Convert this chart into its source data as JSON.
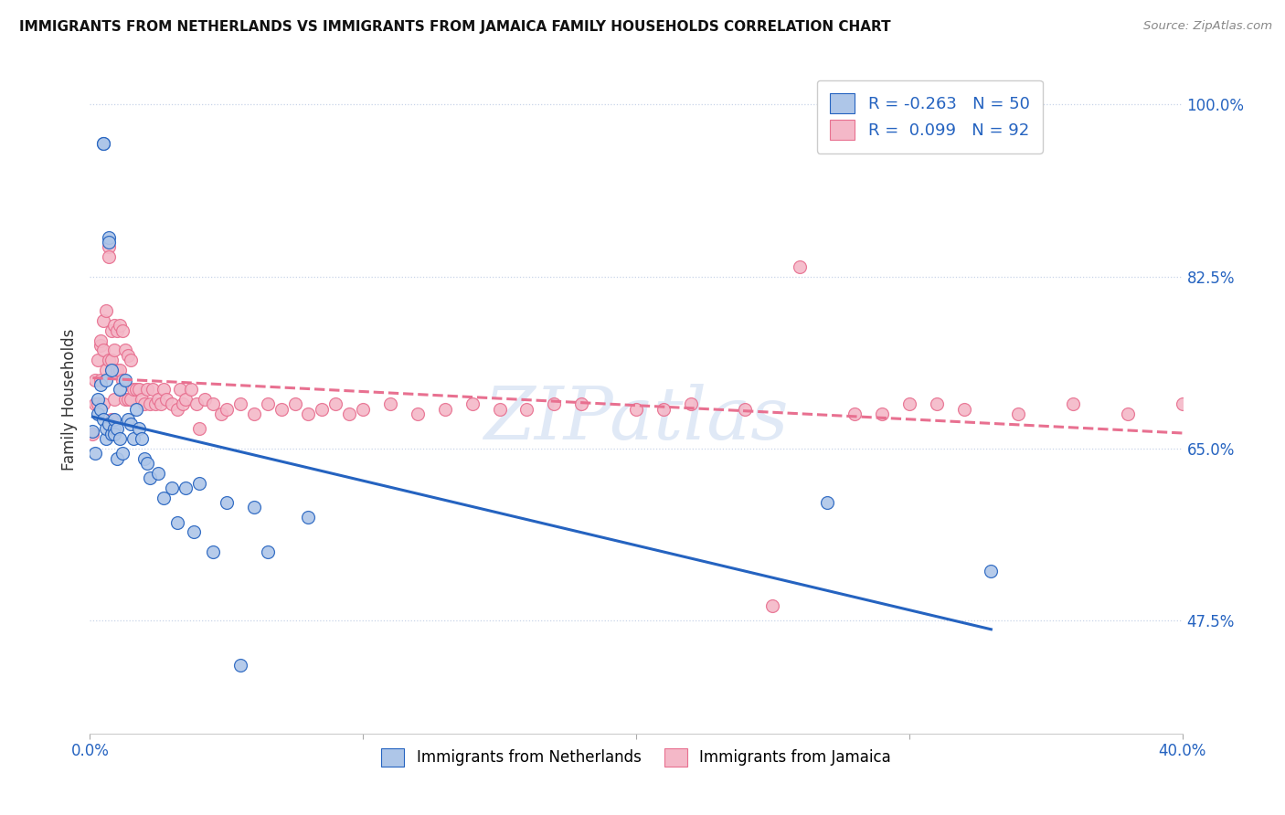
{
  "title": "IMMIGRANTS FROM NETHERLANDS VS IMMIGRANTS FROM JAMAICA FAMILY HOUSEHOLDS CORRELATION CHART",
  "source": "Source: ZipAtlas.com",
  "ylabel": "Family Households",
  "ytick_labels": [
    "100.0%",
    "82.5%",
    "65.0%",
    "47.5%"
  ],
  "ytick_values": [
    1.0,
    0.825,
    0.65,
    0.475
  ],
  "xlim": [
    0.0,
    0.4
  ],
  "ylim": [
    0.36,
    1.04
  ],
  "netherlands_R": -0.263,
  "netherlands_N": 50,
  "jamaica_R": 0.099,
  "jamaica_N": 92,
  "netherlands_color": "#aec6e8",
  "jamaica_color": "#f4b8c8",
  "netherlands_line_color": "#2563c0",
  "jamaica_line_color": "#e87090",
  "background_color": "#ffffff",
  "grid_color": "#c8d4e8",
  "watermark": "ZIPatlas",
  "netherlands_x": [
    0.001,
    0.002,
    0.003,
    0.003,
    0.004,
    0.004,
    0.005,
    0.005,
    0.005,
    0.006,
    0.006,
    0.006,
    0.007,
    0.007,
    0.007,
    0.008,
    0.008,
    0.009,
    0.009,
    0.009,
    0.01,
    0.01,
    0.011,
    0.011,
    0.012,
    0.013,
    0.014,
    0.015,
    0.016,
    0.017,
    0.018,
    0.019,
    0.02,
    0.021,
    0.022,
    0.025,
    0.027,
    0.03,
    0.032,
    0.035,
    0.038,
    0.04,
    0.045,
    0.05,
    0.055,
    0.06,
    0.065,
    0.08,
    0.27,
    0.33
  ],
  "netherlands_y": [
    0.668,
    0.645,
    0.685,
    0.7,
    0.69,
    0.715,
    0.96,
    0.96,
    0.68,
    0.66,
    0.72,
    0.67,
    0.865,
    0.86,
    0.675,
    0.665,
    0.73,
    0.67,
    0.665,
    0.68,
    0.67,
    0.64,
    0.71,
    0.66,
    0.645,
    0.72,
    0.68,
    0.675,
    0.66,
    0.69,
    0.67,
    0.66,
    0.64,
    0.635,
    0.62,
    0.625,
    0.6,
    0.61,
    0.575,
    0.61,
    0.565,
    0.615,
    0.545,
    0.595,
    0.43,
    0.59,
    0.545,
    0.58,
    0.595,
    0.525
  ],
  "jamaica_x": [
    0.001,
    0.002,
    0.002,
    0.003,
    0.003,
    0.004,
    0.004,
    0.004,
    0.005,
    0.005,
    0.005,
    0.006,
    0.006,
    0.007,
    0.007,
    0.007,
    0.008,
    0.008,
    0.008,
    0.009,
    0.009,
    0.009,
    0.01,
    0.01,
    0.011,
    0.011,
    0.012,
    0.012,
    0.013,
    0.013,
    0.014,
    0.014,
    0.015,
    0.015,
    0.016,
    0.017,
    0.018,
    0.019,
    0.02,
    0.021,
    0.022,
    0.023,
    0.024,
    0.025,
    0.026,
    0.027,
    0.028,
    0.03,
    0.032,
    0.033,
    0.034,
    0.035,
    0.037,
    0.039,
    0.04,
    0.042,
    0.045,
    0.048,
    0.05,
    0.055,
    0.06,
    0.065,
    0.07,
    0.075,
    0.08,
    0.085,
    0.09,
    0.095,
    0.1,
    0.11,
    0.12,
    0.13,
    0.14,
    0.15,
    0.16,
    0.18,
    0.2,
    0.22,
    0.24,
    0.26,
    0.28,
    0.3,
    0.32,
    0.34,
    0.36,
    0.38,
    0.4,
    0.17,
    0.21,
    0.29,
    0.31,
    0.25
  ],
  "jamaica_y": [
    0.665,
    0.695,
    0.72,
    0.74,
    0.695,
    0.755,
    0.76,
    0.72,
    0.78,
    0.75,
    0.695,
    0.79,
    0.73,
    0.855,
    0.845,
    0.74,
    0.77,
    0.74,
    0.68,
    0.775,
    0.75,
    0.7,
    0.77,
    0.73,
    0.775,
    0.73,
    0.77,
    0.72,
    0.75,
    0.7,
    0.745,
    0.7,
    0.74,
    0.7,
    0.71,
    0.71,
    0.71,
    0.7,
    0.695,
    0.71,
    0.695,
    0.71,
    0.695,
    0.7,
    0.695,
    0.71,
    0.7,
    0.695,
    0.69,
    0.71,
    0.695,
    0.7,
    0.71,
    0.695,
    0.67,
    0.7,
    0.695,
    0.685,
    0.69,
    0.695,
    0.685,
    0.695,
    0.69,
    0.695,
    0.685,
    0.69,
    0.695,
    0.685,
    0.69,
    0.695,
    0.685,
    0.69,
    0.695,
    0.69,
    0.69,
    0.695,
    0.69,
    0.695,
    0.69,
    0.835,
    0.685,
    0.695,
    0.69,
    0.685,
    0.695,
    0.685,
    0.695,
    0.695,
    0.69,
    0.685,
    0.695,
    0.49
  ]
}
